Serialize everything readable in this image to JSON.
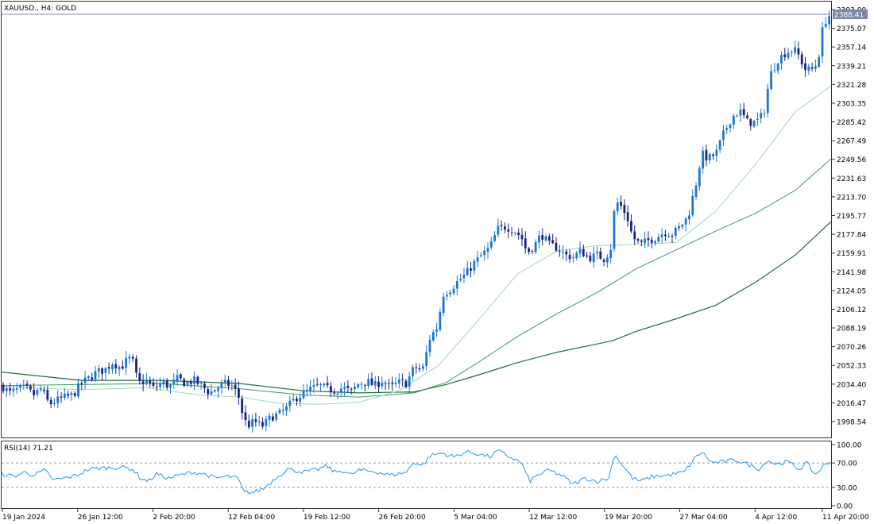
{
  "window": {
    "symbol_title": "XAUUSD., H4:  GOLD"
  },
  "current_price_label": "2388.41",
  "rsi_title": "RSI(14) 71.21",
  "colors": {
    "bull": "#1976d2",
    "bear": "#1a237e",
    "ma_fast": "#9ed9b8",
    "ma_mid": "#3c9a5c",
    "ma_slow": "#1e6b3a",
    "rsi": "#2196f3",
    "price_line": "#7a8aa8"
  },
  "chart_data": [
    {
      "type": "candlestick",
      "title": "XAUUSD., H4:  GOLD",
      "ylim": [
        1985,
        2395
      ],
      "y_ticks": [
        "2393.00",
        "2375.07",
        "2357.14",
        "2339.21",
        "2321.28",
        "2303.35",
        "2285.42",
        "2267.49",
        "2249.56",
        "2231.63",
        "2213.70",
        "2195.77",
        "2177.84",
        "2159.91",
        "2141.98",
        "2124.05",
        "2106.12",
        "2088.19",
        "2070.26",
        "2052.33",
        "2034.40",
        "2016.47",
        "1998.54"
      ],
      "x_ticks": [
        "19 Jan 2024",
        "26 Jan 12:00",
        "2 Feb 20:00",
        "12 Feb 04:00",
        "19 Feb 12:00",
        "26 Feb 20:00",
        "5 Mar 04:00",
        "12 Mar 12:00",
        "19 Mar 20:00",
        "27 Mar 04:00",
        "4 Apr 12:00",
        "11 Apr 20:00"
      ],
      "last_price": 2388.41,
      "close_path": [
        [
          0,
          2033
        ],
        [
          10,
          2026
        ],
        [
          20,
          2029
        ],
        [
          30,
          2031
        ],
        [
          40,
          2024
        ],
        [
          50,
          2030
        ],
        [
          60,
          2015
        ],
        [
          70,
          2019
        ],
        [
          80,
          2022
        ],
        [
          90,
          2024
        ],
        [
          100,
          2035
        ],
        [
          110,
          2040
        ],
        [
          120,
          2046
        ],
        [
          130,
          2048
        ],
        [
          140,
          2055
        ],
        [
          150,
          2050
        ],
        [
          160,
          2059
        ],
        [
          165,
          2057
        ],
        [
          172,
          2035
        ],
        [
          182,
          2038
        ],
        [
          192,
          2030
        ],
        [
          202,
          2036
        ],
        [
          212,
          2032
        ],
        [
          222,
          2040
        ],
        [
          232,
          2035
        ],
        [
          242,
          2038
        ],
        [
          252,
          2033
        ],
        [
          262,
          2026
        ],
        [
          272,
          2031
        ],
        [
          282,
          2035
        ],
        [
          292,
          2032
        ],
        [
          300,
          2020
        ],
        [
          305,
          2000
        ],
        [
          312,
          1995
        ],
        [
          318,
          1999
        ],
        [
          328,
          1994
        ],
        [
          340,
          2003
        ],
        [
          350,
          2006
        ],
        [
          360,
          2012
        ],
        [
          370,
          2021
        ],
        [
          380,
          2025
        ],
        [
          390,
          2030
        ],
        [
          400,
          2033
        ],
        [
          410,
          2030
        ],
        [
          420,
          2028
        ],
        [
          430,
          2031
        ],
        [
          440,
          2027
        ],
        [
          450,
          2035
        ],
        [
          460,
          2037
        ],
        [
          470,
          2033
        ],
        [
          480,
          2038
        ],
        [
          490,
          2031
        ],
        [
          500,
          2036
        ],
        [
          510,
          2035
        ],
        [
          520,
          2051
        ],
        [
          530,
          2047
        ],
        [
          540,
          2080
        ],
        [
          550,
          2090
        ],
        [
          555,
          2120
        ],
        [
          565,
          2125
        ],
        [
          575,
          2133
        ],
        [
          585,
          2140
        ],
        [
          595,
          2150
        ],
        [
          605,
          2158
        ],
        [
          615,
          2165
        ],
        [
          625,
          2183
        ],
        [
          635,
          2185
        ],
        [
          645,
          2182
        ],
        [
          655,
          2175
        ],
        [
          662,
          2160
        ],
        [
          672,
          2168
        ],
        [
          680,
          2178
        ],
        [
          690,
          2168
        ],
        [
          700,
          2165
        ],
        [
          710,
          2158
        ],
        [
          720,
          2156
        ],
        [
          730,
          2162
        ],
        [
          740,
          2155
        ],
        [
          750,
          2158
        ],
        [
          760,
          2154
        ],
        [
          768,
          2166
        ],
        [
          773,
          2210
        ],
        [
          780,
          2205
        ],
        [
          788,
          2195
        ],
        [
          795,
          2175
        ],
        [
          805,
          2168
        ],
        [
          815,
          2172
        ],
        [
          825,
          2175
        ],
        [
          835,
          2180
        ],
        [
          845,
          2178
        ],
        [
          855,
          2185
        ],
        [
          865,
          2195
        ],
        [
          875,
          2227
        ],
        [
          882,
          2255
        ],
        [
          890,
          2250
        ],
        [
          900,
          2255
        ],
        [
          910,
          2275
        ],
        [
          920,
          2290
        ],
        [
          930,
          2296
        ],
        [
          940,
          2285
        ],
        [
          950,
          2285
        ],
        [
          960,
          2293
        ],
        [
          968,
          2330
        ],
        [
          978,
          2345
        ],
        [
          988,
          2352
        ],
        [
          998,
          2355
        ],
        [
          1005,
          2348
        ],
        [
          1012,
          2336
        ],
        [
          1020,
          2335
        ],
        [
          1028,
          2342
        ],
        [
          1035,
          2378
        ],
        [
          1040,
          2385
        ],
        [
          1045,
          2388.41
        ]
      ],
      "ma_fast": [
        [
          0,
          2032
        ],
        [
          100,
          2029
        ],
        [
          180,
          2031
        ],
        [
          250,
          2024
        ],
        [
          300,
          2022
        ],
        [
          350,
          2016
        ],
        [
          400,
          2015
        ],
        [
          450,
          2017
        ],
        [
          500,
          2028
        ],
        [
          550,
          2052
        ],
        [
          600,
          2095
        ],
        [
          650,
          2140
        ],
        [
          700,
          2162
        ],
        [
          750,
          2167
        ],
        [
          800,
          2168
        ],
        [
          850,
          2170
        ],
        [
          900,
          2200
        ],
        [
          950,
          2245
        ],
        [
          1000,
          2295
        ],
        [
          1045,
          2320
        ]
      ],
      "ma_mid": [
        [
          0,
          2033
        ],
        [
          100,
          2034
        ],
        [
          200,
          2035
        ],
        [
          300,
          2030
        ],
        [
          380,
          2024
        ],
        [
          450,
          2022
        ],
        [
          520,
          2026
        ],
        [
          560,
          2036
        ],
        [
          600,
          2055
        ],
        [
          650,
          2080
        ],
        [
          700,
          2102
        ],
        [
          750,
          2122
        ],
        [
          800,
          2145
        ],
        [
          850,
          2163
        ],
        [
          900,
          2181
        ],
        [
          950,
          2198
        ],
        [
          1000,
          2220
        ],
        [
          1045,
          2250
        ]
      ],
      "ma_slow": [
        [
          0,
          2046
        ],
        [
          100,
          2038
        ],
        [
          200,
          2038
        ],
        [
          300,
          2035
        ],
        [
          380,
          2028
        ],
        [
          450,
          2026
        ],
        [
          520,
          2027
        ],
        [
          560,
          2034
        ],
        [
          600,
          2043
        ],
        [
          650,
          2055
        ],
        [
          700,
          2065
        ],
        [
          770,
          2076
        ],
        [
          800,
          2085
        ],
        [
          850,
          2097
        ],
        [
          900,
          2110
        ],
        [
          950,
          2132
        ],
        [
          1000,
          2158
        ],
        [
          1045,
          2190
        ]
      ]
    },
    {
      "type": "line",
      "title": "RSI(14) 71.21",
      "ylim": [
        0,
        100
      ],
      "y_ticks": [
        "100.00",
        "70.00",
        "30.00",
        "0.00"
      ],
      "levels": [
        70,
        30
      ],
      "values": [
        [
          0,
          52
        ],
        [
          15,
          48
        ],
        [
          30,
          55
        ],
        [
          40,
          50
        ],
        [
          55,
          58
        ],
        [
          65,
          42
        ],
        [
          80,
          45
        ],
        [
          95,
          50
        ],
        [
          110,
          60
        ],
        [
          130,
          62
        ],
        [
          150,
          63
        ],
        [
          165,
          60
        ],
        [
          175,
          45
        ],
        [
          185,
          40
        ],
        [
          195,
          52
        ],
        [
          210,
          45
        ],
        [
          225,
          50
        ],
        [
          240,
          55
        ],
        [
          255,
          52
        ],
        [
          270,
          45
        ],
        [
          285,
          48
        ],
        [
          298,
          45
        ],
        [
          305,
          22
        ],
        [
          318,
          22
        ],
        [
          330,
          28
        ],
        [
          345,
          45
        ],
        [
          360,
          60
        ],
        [
          380,
          55
        ],
        [
          395,
          58
        ],
        [
          410,
          65
        ],
        [
          420,
          55
        ],
        [
          430,
          58
        ],
        [
          440,
          50
        ],
        [
          450,
          58
        ],
        [
          470,
          56
        ],
        [
          490,
          50
        ],
        [
          510,
          55
        ],
        [
          520,
          72
        ],
        [
          530,
          65
        ],
        [
          540,
          82
        ],
        [
          555,
          86
        ],
        [
          570,
          80
        ],
        [
          585,
          88
        ],
        [
          600,
          85
        ],
        [
          615,
          80
        ],
        [
          625,
          90
        ],
        [
          640,
          80
        ],
        [
          655,
          70
        ],
        [
          665,
          40
        ],
        [
          675,
          50
        ],
        [
          690,
          58
        ],
        [
          705,
          50
        ],
        [
          720,
          35
        ],
        [
          735,
          45
        ],
        [
          750,
          40
        ],
        [
          765,
          45
        ],
        [
          772,
          85
        ],
        [
          780,
          70
        ],
        [
          795,
          45
        ],
        [
          805,
          40
        ],
        [
          820,
          48
        ],
        [
          840,
          50
        ],
        [
          860,
          55
        ],
        [
          875,
          80
        ],
        [
          882,
          88
        ],
        [
          895,
          70
        ],
        [
          910,
          72
        ],
        [
          925,
          75
        ],
        [
          940,
          68
        ],
        [
          955,
          60
        ],
        [
          965,
          75
        ],
        [
          975,
          68
        ],
        [
          990,
          72
        ],
        [
          1005,
          60
        ],
        [
          1015,
          70
        ],
        [
          1025,
          50
        ],
        [
          1035,
          65
        ],
        [
          1045,
          71.21
        ]
      ]
    }
  ]
}
